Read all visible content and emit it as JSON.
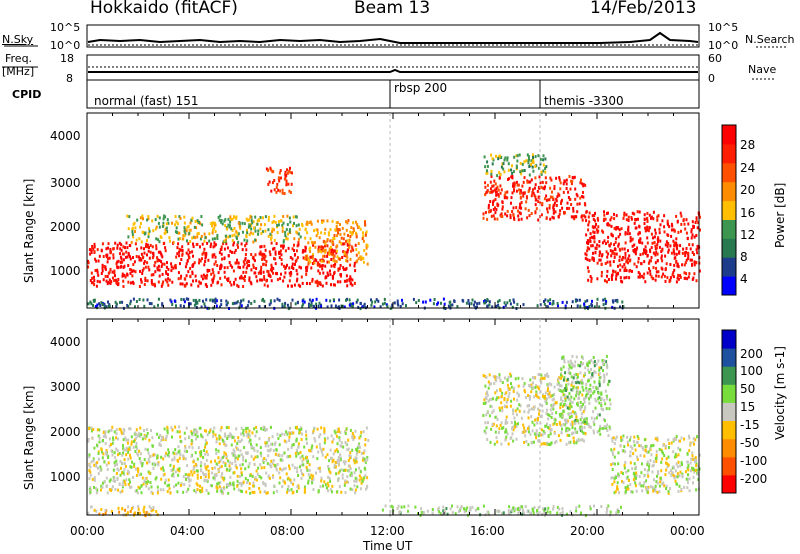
{
  "header": {
    "station": "Hokkaido (fitACF)",
    "beam": "Beam 13",
    "date": "14/Feb/2013"
  },
  "top_panel": {
    "left_label": "N.Sky",
    "left_ticks": [
      "10^5",
      "10^0"
    ],
    "right_label": "N.Search",
    "right_ticks": [
      "10^5",
      "10^0"
    ]
  },
  "freq_panel": {
    "left_label": "Freq.",
    "left_unit": "[MHz]",
    "left_ticks": [
      "18",
      "8"
    ],
    "right_label": "Nave",
    "right_ticks": [
      "60",
      "0"
    ]
  },
  "cpid_panel": {
    "label": "CPID",
    "modes": [
      {
        "name": "normal (fast) 151",
        "start_hour": 0
      },
      {
        "name": "rbsp 200",
        "start_hour": 12
      },
      {
        "name": "themis -3300",
        "start_hour": 18
      }
    ]
  },
  "x_axis": {
    "label": "Time UT",
    "ticks": [
      "00:00",
      "04:00",
      "08:00",
      "12:00",
      "16:00",
      "20:00",
      "00:00"
    ]
  },
  "y_axis": {
    "label": "Slant Range [km]",
    "ticks": [
      "1000",
      "2000",
      "3000",
      "4000"
    ]
  },
  "colors": {
    "power": [
      "#0000ff",
      "#1e3c8c",
      "#287850",
      "#3c9650",
      "#ffbe00",
      "#ff8c00",
      "#ff5000",
      "#ff1e00",
      "#ff0000"
    ],
    "velocity": [
      "#ff0000",
      "#ff5000",
      "#ff8c00",
      "#ffbe00",
      "#c8c8c0",
      "#78dc3c",
      "#3c9650",
      "#1e50a0",
      "#0000c8"
    ]
  },
  "chart_data": [
    {
      "type": "heatmap",
      "title": "Power",
      "colorbar_label": "Power [dB]",
      "colorbar_ticks": [
        "28",
        "24",
        "20",
        "16",
        "12",
        "8",
        "4"
      ],
      "colorbar_values": [
        4,
        8,
        12,
        16,
        20,
        24,
        28
      ],
      "xlabel": "Time UT",
      "ylabel": "Slant Range [km]",
      "xlim_hours": [
        0,
        24
      ],
      "ylim_km": [
        180,
        4600
      ],
      "regions": [
        {
          "t0": 0.0,
          "t1": 10.5,
          "r0": 700,
          "r1": 1700,
          "value": 30
        },
        {
          "t0": 1.5,
          "t1": 8.5,
          "r0": 1700,
          "r1": 2300,
          "value": 16
        },
        {
          "t0": 7.0,
          "t1": 8.0,
          "r0": 2800,
          "r1": 3400,
          "value": 26
        },
        {
          "t0": 8.5,
          "t1": 11.0,
          "r0": 1200,
          "r1": 2200,
          "value": 20
        },
        {
          "t0": 15.5,
          "t1": 19.5,
          "r0": 2200,
          "r1": 3200,
          "value": 28
        },
        {
          "t0": 19.5,
          "t1": 24.0,
          "r0": 800,
          "r1": 2400,
          "value": 30
        },
        {
          "t0": 15.5,
          "t1": 18.0,
          "r0": 3200,
          "r1": 3700,
          "value": 14
        },
        {
          "t0": 0.0,
          "t1": 21.0,
          "r0": 200,
          "r1": 420,
          "value": 8
        }
      ]
    },
    {
      "type": "heatmap",
      "title": "Velocity",
      "colorbar_label": "Velocity [m s-1]",
      "colorbar_ticks": [
        "200",
        "100",
        "50",
        "15",
        "-15",
        "-50",
        "-100",
        "-200"
      ],
      "colorbar_values": [
        200,
        100,
        50,
        15,
        -15,
        -50,
        -100,
        -200
      ],
      "xlabel": "Time UT",
      "ylabel": "Slant Range [km]",
      "xlim_hours": [
        0,
        24
      ],
      "ylim_km": [
        180,
        4600
      ],
      "regions": [
        {
          "t0": 0.0,
          "t1": 11.0,
          "r0": 700,
          "r1": 2200,
          "value": 0
        },
        {
          "t0": 15.5,
          "t1": 19.5,
          "r0": 1800,
          "r1": 3400,
          "value": 0
        },
        {
          "t0": 18.5,
          "t1": 20.5,
          "r0": 2000,
          "r1": 3800,
          "value": 30
        },
        {
          "t0": 20.5,
          "t1": 24.0,
          "r0": 700,
          "r1": 2000,
          "value": 0
        },
        {
          "t0": 0.0,
          "t1": 3.0,
          "r0": 200,
          "r1": 420,
          "value": -40
        },
        {
          "t0": 11.5,
          "t1": 21.0,
          "r0": 200,
          "r1": 420,
          "value": 30
        }
      ]
    }
  ]
}
